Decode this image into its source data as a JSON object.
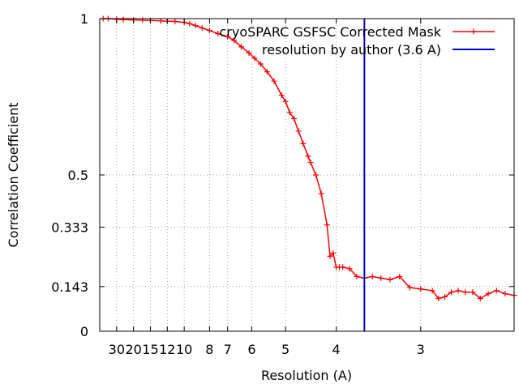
{
  "chart_data": {
    "type": "line",
    "xlabel": "Resolution (A)",
    "ylabel": "Correlation Coefficient",
    "x_axis_scale": "reciprocal",
    "xlim": [
      60,
      2.35
    ],
    "ylim": [
      0,
      1
    ],
    "grid": true,
    "legend_placement": "top-right",
    "x_ticks": [
      {
        "value": 30,
        "label": "30"
      },
      {
        "value": 20,
        "label": "20"
      },
      {
        "value": 15,
        "label": "15"
      },
      {
        "value": 12,
        "label": "12"
      },
      {
        "value": 10,
        "label": "10"
      },
      {
        "value": 8,
        "label": "8"
      },
      {
        "value": 7,
        "label": "7"
      },
      {
        "value": 6,
        "label": "6"
      },
      {
        "value": 5,
        "label": "5"
      },
      {
        "value": 4,
        "label": "4"
      },
      {
        "value": 3,
        "label": "3"
      }
    ],
    "y_ticks": [
      {
        "value": 0,
        "label": "0"
      },
      {
        "value": 0.143,
        "label": "0.143"
      },
      {
        "value": 0.333,
        "label": "0.333"
      },
      {
        "value": 0.5,
        "label": "0.5"
      },
      {
        "value": 1,
        "label": "1"
      }
    ],
    "series": [
      {
        "name": "cryoSPARC GSFSC Corrected Mask",
        "color": "#ff0000",
        "marker": "plus",
        "x": [
          50,
          40,
          30,
          25,
          20,
          17,
          15,
          13,
          12,
          11,
          10,
          9.5,
          9,
          8.5,
          8,
          7.5,
          7,
          6.7,
          6.4,
          6.1,
          5.9,
          5.7,
          5.5,
          5.3,
          5.1,
          5.0,
          4.9,
          4.8,
          4.7,
          4.6,
          4.5,
          4.45,
          4.35,
          4.25,
          4.15,
          4.1,
          4.05,
          4.0,
          3.95,
          3.9,
          3.8,
          3.7,
          3.6,
          3.5,
          3.4,
          3.3,
          3.2,
          3.1,
          3.0,
          2.9,
          2.85,
          2.8,
          2.75,
          2.7,
          2.65,
          2.6,
          2.55,
          2.5,
          2.45,
          2.4,
          2.35
        ],
        "y": [
          1.0,
          1.0,
          0.998,
          0.997,
          0.996,
          0.995,
          0.994,
          0.993,
          0.992,
          0.991,
          0.988,
          0.984,
          0.978,
          0.97,
          0.962,
          0.952,
          0.942,
          0.93,
          0.91,
          0.89,
          0.873,
          0.855,
          0.83,
          0.8,
          0.755,
          0.735,
          0.7,
          0.68,
          0.64,
          0.6,
          0.56,
          0.54,
          0.5,
          0.44,
          0.34,
          0.24,
          0.25,
          0.205,
          0.205,
          0.205,
          0.2,
          0.175,
          0.17,
          0.175,
          0.17,
          0.165,
          0.175,
          0.14,
          0.135,
          0.13,
          0.105,
          0.11,
          0.125,
          0.13,
          0.125,
          0.125,
          0.105,
          0.12,
          0.13,
          0.12,
          0.115
        ]
      },
      {
        "name": "resolution by author (3.6 A)",
        "color": "#0000cc",
        "type": "vline",
        "x": 3.6
      }
    ]
  }
}
